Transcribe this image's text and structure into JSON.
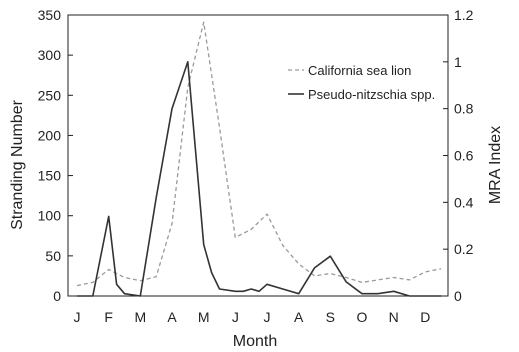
{
  "chart_data": {
    "type": "line",
    "title": "",
    "xlabel": "Month",
    "ylabel_left": "Stranding Number",
    "ylabel_right": "MRA Index",
    "categories": [
      "J",
      "F",
      "M",
      "A",
      "M",
      "J",
      "J",
      "A",
      "S",
      "O",
      "N",
      "D"
    ],
    "y_left": {
      "range": [
        0,
        350
      ],
      "ticks": [
        0,
        50,
        100,
        150,
        200,
        250,
        300,
        350
      ]
    },
    "y_right": {
      "range": [
        0,
        1.2
      ],
      "ticks": [
        "0",
        "0.2",
        "0.4",
        "0.6",
        "0.8",
        "1",
        "1.2"
      ]
    },
    "grid": false,
    "legend_position": "top-right",
    "series": [
      {
        "name": "California sea lion",
        "axis": "left",
        "style": "dashed",
        "color": "#9a9a9a",
        "x": [
          0,
          0.5,
          1,
          1.5,
          2,
          2.5,
          3,
          3.5,
          4,
          4.5,
          5,
          5.5,
          6,
          6.5,
          7,
          7.5,
          8,
          8.5,
          9,
          9.5,
          10,
          10.5,
          11,
          11.5
        ],
        "y": [
          13,
          17,
          33,
          23,
          19,
          24,
          90,
          260,
          341,
          210,
          73,
          83,
          102,
          63,
          40,
          25,
          28,
          23,
          17,
          20,
          23,
          20,
          30,
          34
        ]
      },
      {
        "name": "Pseudo-nitzschia spp.",
        "axis": "right",
        "style": "solid",
        "color": "#333333",
        "x": [
          0,
          0.5,
          1,
          1.25,
          1.5,
          2,
          2.5,
          3,
          3.5,
          4,
          4.25,
          4.5,
          5,
          5.25,
          5.5,
          5.75,
          6,
          6.5,
          7,
          7.5,
          8,
          8.5,
          9,
          9.5,
          10,
          10.5,
          11,
          11.5
        ],
        "y": [
          0,
          0,
          0.34,
          0.05,
          0.01,
          0.0,
          0.42,
          0.8,
          1.0,
          0.22,
          0.1,
          0.03,
          0.02,
          0.02,
          0.03,
          0.02,
          0.05,
          0.03,
          0.01,
          0.12,
          0.17,
          0.06,
          0.01,
          0.01,
          0.02,
          0.0,
          0.0,
          0.0
        ]
      }
    ]
  }
}
